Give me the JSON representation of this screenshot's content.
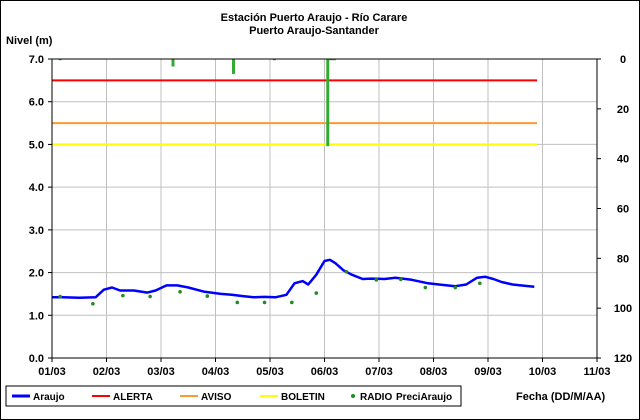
{
  "chart_data": {
    "type": "line",
    "title": "Estación Puerto Araujo - Río Carare",
    "subtitle": "Puerto Araujo-Santander",
    "ylabel": "Nivel (m)",
    "xlabel": "Fecha (DD/M/AA)",
    "ylim": [
      0,
      7
    ],
    "y2lim": [
      0,
      120
    ],
    "y2_inverted": true,
    "y_ticks": [
      "0.0",
      "1.0",
      "2.0",
      "3.0",
      "4.0",
      "5.0",
      "6.0",
      "7.0"
    ],
    "y2_ticks": [
      "0",
      "20",
      "40",
      "60",
      "80",
      "100",
      "120"
    ],
    "x_ticks": [
      "01/03",
      "02/03",
      "03/03",
      "04/03",
      "05/03",
      "06/03",
      "07/03",
      "08/03",
      "09/03",
      "10/03",
      "11/03"
    ],
    "grid": true,
    "legend_position": "bottom",
    "colors": {
      "araujo": "#0000ff",
      "alerta": "#ff0000",
      "aviso": "#ff9933",
      "boletin": "#ffff00",
      "radio": "#228b22",
      "precip": "#33aa33",
      "grid": "#c0c0c0"
    },
    "series": [
      {
        "name": "Araujo",
        "kind": "line",
        "x": [
          1.0,
          1.2,
          1.5,
          1.8,
          1.95,
          2.1,
          2.25,
          2.5,
          2.75,
          2.9,
          3.1,
          3.3,
          3.5,
          3.8,
          4.1,
          4.3,
          4.5,
          4.7,
          4.9,
          5.1,
          5.3,
          5.45,
          5.6,
          5.7,
          5.85,
          6.0,
          6.1,
          6.2,
          6.35,
          6.5,
          6.7,
          6.85,
          7.1,
          7.3,
          7.6,
          7.9,
          8.1,
          8.4,
          8.6,
          8.8,
          8.95,
          9.1,
          9.25,
          9.45,
          9.6,
          9.85
        ],
        "values": [
          1.42,
          1.42,
          1.41,
          1.42,
          1.6,
          1.65,
          1.58,
          1.58,
          1.53,
          1.58,
          1.7,
          1.7,
          1.65,
          1.55,
          1.5,
          1.48,
          1.45,
          1.42,
          1.43,
          1.42,
          1.48,
          1.75,
          1.8,
          1.72,
          1.95,
          2.27,
          2.3,
          2.22,
          2.05,
          1.95,
          1.85,
          1.86,
          1.85,
          1.88,
          1.83,
          1.75,
          1.72,
          1.68,
          1.72,
          1.88,
          1.9,
          1.85,
          1.78,
          1.72,
          1.7,
          1.67
        ]
      },
      {
        "name": "ALERTA",
        "kind": "hline",
        "x": [
          1.0,
          9.9
        ],
        "values": [
          6.5,
          6.5
        ]
      },
      {
        "name": "AVISO",
        "kind": "hline",
        "x": [
          1.0,
          9.9
        ],
        "values": [
          5.5,
          5.5
        ]
      },
      {
        "name": "BOLETIN",
        "kind": "hline",
        "x": [
          1.0,
          9.9
        ],
        "values": [
          5.0,
          5.0
        ]
      },
      {
        "name": "RADIO",
        "kind": "points",
        "x": [
          1.15,
          1.75,
          2.3,
          2.8,
          3.35,
          3.85,
          4.4,
          4.9,
          5.4,
          5.85,
          6.4,
          6.95,
          7.4,
          7.85,
          8.4,
          8.85
        ],
        "values": [
          1.44,
          1.27,
          1.46,
          1.44,
          1.55,
          1.45,
          1.3,
          1.3,
          1.3,
          1.52,
          2.02,
          1.83,
          1.84,
          1.65,
          1.65,
          1.75
        ]
      },
      {
        "name": "PreciAraujo",
        "kind": "bars",
        "axis": "right",
        "x": [
          1.15,
          3.22,
          4.33,
          5.08,
          6.06,
          6.12,
          6.18
        ],
        "values": [
          0.5,
          3,
          6,
          0.5,
          35,
          0.5,
          0.5
        ]
      }
    ]
  }
}
